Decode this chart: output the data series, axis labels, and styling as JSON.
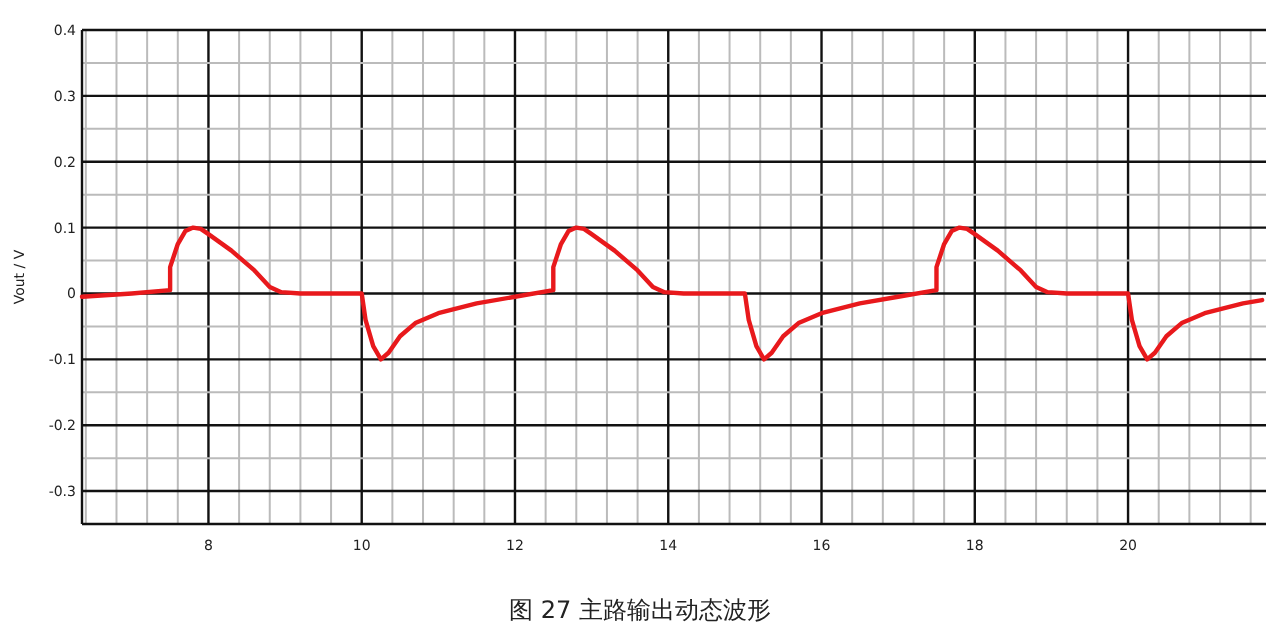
{
  "chart_data": {
    "type": "line",
    "title": "图 27 主路输出动态波形",
    "ylabel": "Vout / V",
    "xlim": [
      6.35,
      21.8
    ],
    "ylim": [
      -0.35,
      0.4
    ],
    "xticks": [
      {
        "value": 6.4,
        "label": null
      },
      {
        "value": 6.8,
        "label": null
      },
      {
        "value": 7.2,
        "label": null
      },
      {
        "value": 7.6,
        "label": null
      },
      8,
      {
        "value": 8.4,
        "label": null
      },
      {
        "value": 8.8,
        "label": null
      },
      {
        "value": 9.2,
        "label": null
      },
      {
        "value": 9.6,
        "label": null
      },
      10,
      {
        "value": 10.4,
        "label": null
      },
      {
        "value": 10.8,
        "label": null
      },
      {
        "value": 11.2,
        "label": null
      },
      {
        "value": 11.6,
        "label": null
      },
      12,
      {
        "value": 12.4,
        "label": null
      },
      {
        "value": 12.8,
        "label": null
      },
      {
        "value": 13.2,
        "label": null
      },
      {
        "value": 13.6,
        "label": null
      },
      14,
      {
        "value": 14.4,
        "label": null
      },
      {
        "value": 14.8,
        "label": null
      },
      {
        "value": 15.2,
        "label": null
      },
      {
        "value": 15.6,
        "label": null
      },
      16,
      {
        "value": 16.4,
        "label": null
      },
      {
        "value": 16.8,
        "label": null
      },
      {
        "value": 17.2,
        "label": null
      },
      {
        "value": 17.6,
        "label": null
      },
      18,
      {
        "value": 18.4,
        "label": null
      },
      {
        "value": 18.8,
        "label": null
      },
      {
        "value": 19.2,
        "label": null
      },
      {
        "value": 19.6,
        "label": null
      },
      20,
      {
        "value": 20.4,
        "label": null
      },
      {
        "value": 20.8,
        "label": null
      },
      {
        "value": 21.2,
        "label": null
      },
      {
        "value": 21.6,
        "label": null
      }
    ],
    "yticks": [
      {
        "value": -0.35,
        "label": null
      },
      -0.3,
      {
        "value": -0.25,
        "label": null
      },
      -0.2,
      {
        "value": -0.15,
        "label": null
      },
      -0.1,
      {
        "value": -0.05,
        "label": null
      },
      0,
      {
        "value": 0.05,
        "label": null
      },
      0.1,
      {
        "value": 0.15,
        "label": null
      },
      0.2,
      {
        "value": 0.25,
        "label": null
      },
      0.3,
      {
        "value": 0.35,
        "label": null
      },
      0.4
    ],
    "grid": true,
    "line_style": "solid",
    "marker": "none",
    "series": [
      {
        "color": "#e8191c",
        "x": [
          6.35,
          7.0,
          7.5,
          7.5,
          7.6,
          7.7,
          7.8,
          7.9,
          8.0,
          8.3,
          8.6,
          8.8,
          8.95,
          9.2,
          10.0,
          10.05,
          10.15,
          10.25,
          10.35,
          10.5,
          10.7,
          11.0,
          11.5,
          12.0,
          12.5,
          12.5,
          12.6,
          12.7,
          12.8,
          12.9,
          13.0,
          13.3,
          13.6,
          13.8,
          13.95,
          14.2,
          15.0,
          15.05,
          15.15,
          15.25,
          15.35,
          15.5,
          15.7,
          16.0,
          16.5,
          17.0,
          17.5,
          17.5,
          17.6,
          17.7,
          17.8,
          17.9,
          18.0,
          18.3,
          18.6,
          18.8,
          18.95,
          19.2,
          20.0,
          20.05,
          20.15,
          20.25,
          20.35,
          20.5,
          20.7,
          21.0,
          21.5,
          21.75
        ],
        "values": [
          -0.005,
          0,
          0.005,
          0.04,
          0.075,
          0.095,
          0.1,
          0.098,
          0.09,
          0.065,
          0.035,
          0.01,
          0.002,
          0,
          0,
          -0.04,
          -0.08,
          -0.1,
          -0.09,
          -0.065,
          -0.045,
          -0.03,
          -0.015,
          -0.005,
          0.005,
          0.04,
          0.075,
          0.095,
          0.1,
          0.098,
          0.09,
          0.065,
          0.035,
          0.01,
          0.002,
          0,
          0,
          -0.04,
          -0.08,
          -0.1,
          -0.09,
          -0.065,
          -0.045,
          -0.03,
          -0.015,
          -0.005,
          0.005,
          0.04,
          0.075,
          0.095,
          0.1,
          0.098,
          0.09,
          0.065,
          0.035,
          0.01,
          0.002,
          0,
          0,
          -0.04,
          -0.08,
          -0.1,
          -0.09,
          -0.065,
          -0.045,
          -0.03,
          -0.015,
          -0.01
        ]
      }
    ]
  }
}
